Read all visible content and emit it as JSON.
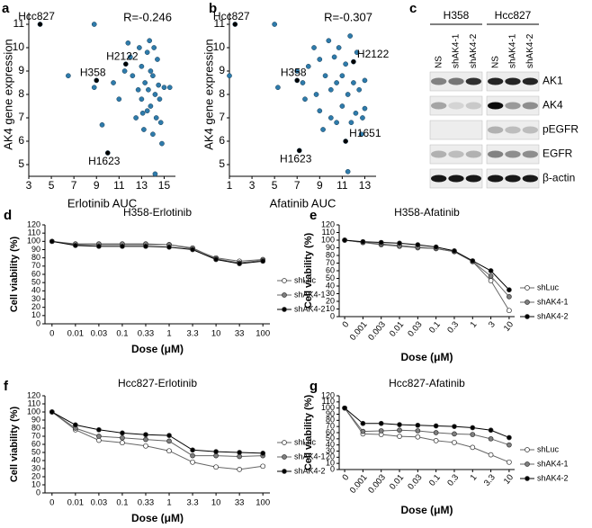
{
  "chart_data": [
    {
      "type": "scatter",
      "panel": "a",
      "x_label": "Erlotinib AUC",
      "y_label": "AK4 gene expression",
      "annotation": "R=-0.246",
      "xlim": [
        3,
        16
      ],
      "xticks": [
        3,
        5,
        7,
        9,
        11,
        13,
        15
      ],
      "ylim": [
        4.5,
        11.5
      ],
      "yticks": [
        5,
        6,
        7,
        8,
        9,
        10,
        11
      ],
      "series": [
        {
          "color": "#2e7bab",
          "x": [
            8.8,
            6.5,
            8.8,
            9.5,
            10.5,
            11,
            11.5,
            11.8,
            12,
            12.2,
            12.5,
            12.7,
            12.8,
            13,
            13,
            13.2,
            13.3,
            13.5,
            13.5,
            13.6,
            13.7,
            13.8,
            13.8,
            14,
            14,
            14.1,
            14.2,
            14.3,
            14.4,
            14.5,
            14.6,
            14.7,
            14.8,
            15,
            15.5,
            14.2,
            13.1
          ],
          "values": [
            11,
            8.8,
            8.3,
            6.7,
            8.5,
            7.8,
            9,
            10.2,
            9.6,
            8.8,
            7,
            8.2,
            10,
            9.2,
            7.8,
            6.5,
            8.5,
            9.8,
            7.3,
            8.2,
            10.3,
            9,
            7.5,
            8.8,
            6.3,
            10,
            8,
            7,
            9.5,
            8.4,
            7.8,
            6.8,
            5.9,
            8.3,
            8.3,
            4.6,
            7.2
          ]
        },
        {
          "color": "#000000",
          "x": [
            4,
            9,
            11.6,
            10
          ],
          "values": [
            11,
            8.6,
            9.3,
            5.5
          ],
          "point_labels": [
            "Hcc827",
            "H358",
            "H2122",
            "H1623"
          ]
        }
      ]
    },
    {
      "type": "scatter",
      "panel": "b",
      "x_label": "Afatinib AUC",
      "y_label": "AK4 gene expression",
      "annotation": "R=-0.307",
      "xlim": [
        1,
        14
      ],
      "xticks": [
        1,
        3,
        5,
        7,
        9,
        11,
        13
      ],
      "ylim": [
        4.5,
        11.5
      ],
      "yticks": [
        5,
        6,
        7,
        8,
        9,
        10,
        11
      ],
      "series": [
        {
          "color": "#2e7bab",
          "x": [
            1,
            5,
            5.3,
            7,
            7.5,
            7.7,
            8,
            8.5,
            8.7,
            9,
            9,
            9.3,
            9.5,
            9.8,
            10,
            10,
            10.3,
            10.5,
            10.7,
            11,
            11,
            11.3,
            11.5,
            11.7,
            11.8,
            12,
            12.2,
            12.3,
            12.5,
            12.7,
            12.8,
            13,
            13,
            11.5,
            10.5
          ],
          "values": [
            8.8,
            11,
            8.3,
            9,
            8.5,
            7.8,
            9.2,
            10,
            8,
            9.5,
            7.3,
            6.5,
            8.8,
            10.3,
            8.2,
            7,
            9.6,
            8.5,
            10,
            8.8,
            7.5,
            9.3,
            8,
            10.5,
            6.8,
            8.5,
            7.2,
            9.8,
            8.2,
            6.3,
            7,
            8.6,
            7.4,
            4.7,
            6.8
          ]
        },
        {
          "color": "#000000",
          "x": [
            1.5,
            7,
            12,
            7.2,
            11.3
          ],
          "values": [
            11,
            8.6,
            9.4,
            5.6,
            6
          ],
          "point_labels": [
            "Hcc827",
            "H358",
            "H2122",
            "H1623",
            "H1651"
          ]
        }
      ]
    },
    {
      "type": "line",
      "panel": "d",
      "title": "H358-Erlotinib",
      "x_label": "Dose (μM)",
      "y_label": "Cell viability (%)",
      "categories": [
        "0",
        "0.01",
        "0.03",
        "0.1",
        "0.33",
        "1",
        "3.3",
        "10",
        "33",
        "100"
      ],
      "ylim": [
        0,
        120
      ],
      "yticks": [
        0,
        10,
        20,
        30,
        40,
        50,
        60,
        70,
        80,
        90,
        100,
        110,
        120
      ],
      "series": [
        {
          "name": "shLuc",
          "color": "#ffffff",
          "values": [
            100,
            96,
            96,
            96,
            96,
            96,
            91,
            80,
            76,
            78
          ]
        },
        {
          "name": "shAK4-1",
          "color": "#808080",
          "values": [
            100,
            97,
            97,
            97,
            97,
            96,
            92,
            79,
            74,
            77
          ]
        },
        {
          "name": "shAK4-2",
          "color": "#000000",
          "values": [
            100,
            95,
            94,
            94,
            94,
            93,
            90,
            78,
            73,
            76
          ]
        }
      ]
    },
    {
      "type": "line",
      "panel": "e",
      "title": "H358-Afatinib",
      "x_label": "Dose (μM)",
      "y_label": "Cell viability (%)",
      "categories": [
        "0",
        "0.001",
        "0.003",
        "0.01",
        "0.03",
        "0.1",
        "0.3",
        "1",
        "3",
        "10"
      ],
      "ylim": [
        0,
        120
      ],
      "yticks": [
        0,
        10,
        20,
        30,
        40,
        50,
        60,
        70,
        80,
        90,
        100,
        110,
        120
      ],
      "series": [
        {
          "name": "shLuc",
          "color": "#ffffff",
          "values": [
            100,
            97,
            94,
            92,
            90,
            89,
            85,
            72,
            47,
            8
          ]
        },
        {
          "name": "shAK4-1",
          "color": "#808080",
          "values": [
            100,
            97,
            95,
            93,
            91,
            89,
            85,
            72,
            53,
            26
          ]
        },
        {
          "name": "shAK4-2",
          "color": "#000000",
          "values": [
            100,
            98,
            97,
            96,
            94,
            91,
            86,
            73,
            60,
            35
          ]
        }
      ]
    },
    {
      "type": "line",
      "panel": "f",
      "title": "Hcc827-Erlotinib",
      "x_label": "Dose (μM)",
      "y_label": "Cell viability (%)",
      "categories": [
        "0",
        "0.01",
        "0.03",
        "0.1",
        "0.33",
        "1",
        "3.3",
        "10",
        "33",
        "100"
      ],
      "ylim": [
        0,
        120
      ],
      "yticks": [
        0,
        10,
        20,
        30,
        40,
        50,
        60,
        70,
        80,
        90,
        100,
        110,
        120
      ],
      "series": [
        {
          "name": "shLuc",
          "color": "#ffffff",
          "values": [
            100,
            78,
            65,
            62,
            58,
            52,
            38,
            32,
            29,
            33
          ]
        },
        {
          "name": "shAK4-1",
          "color": "#808080",
          "values": [
            100,
            80,
            70,
            68,
            66,
            64,
            46,
            46,
            45,
            46
          ]
        },
        {
          "name": "shAK4-2",
          "color": "#000000",
          "values": [
            100,
            84,
            78,
            74,
            72,
            71,
            53,
            51,
            50,
            49
          ]
        }
      ]
    },
    {
      "type": "line",
      "panel": "g",
      "title": "Hcc827-Afatinib",
      "x_label": "Dose (μM)",
      "y_label": "Cell viability (%)",
      "categories": [
        "0",
        "0.001",
        "0.003",
        "0.01",
        "0.03",
        "0.1",
        "0.3",
        "1",
        "3.3",
        "10"
      ],
      "ylim": [
        0,
        120
      ],
      "yticks": [
        0,
        10,
        20,
        30,
        40,
        50,
        60,
        70,
        80,
        90,
        100,
        110,
        120
      ],
      "series": [
        {
          "name": "shLuc",
          "color": "#ffffff",
          "values": [
            100,
            58,
            57,
            54,
            53,
            47,
            44,
            36,
            24,
            12
          ]
        },
        {
          "name": "shAK4-1",
          "color": "#808080",
          "values": [
            100,
            62,
            63,
            64,
            63,
            60,
            58,
            57,
            50,
            40
          ]
        },
        {
          "name": "shAK4-2",
          "color": "#000000",
          "values": [
            100,
            75,
            75,
            73,
            72,
            71,
            70,
            68,
            64,
            52
          ]
        }
      ]
    }
  ],
  "blot": {
    "panel": "c",
    "groups": [
      "H358",
      "Hcc827"
    ],
    "lanes": [
      "NS",
      "shAK4-1",
      "shAK4-2"
    ],
    "rows": [
      "AK1",
      "AK4",
      "pEGFR",
      "EGFR",
      "β-actin"
    ]
  }
}
